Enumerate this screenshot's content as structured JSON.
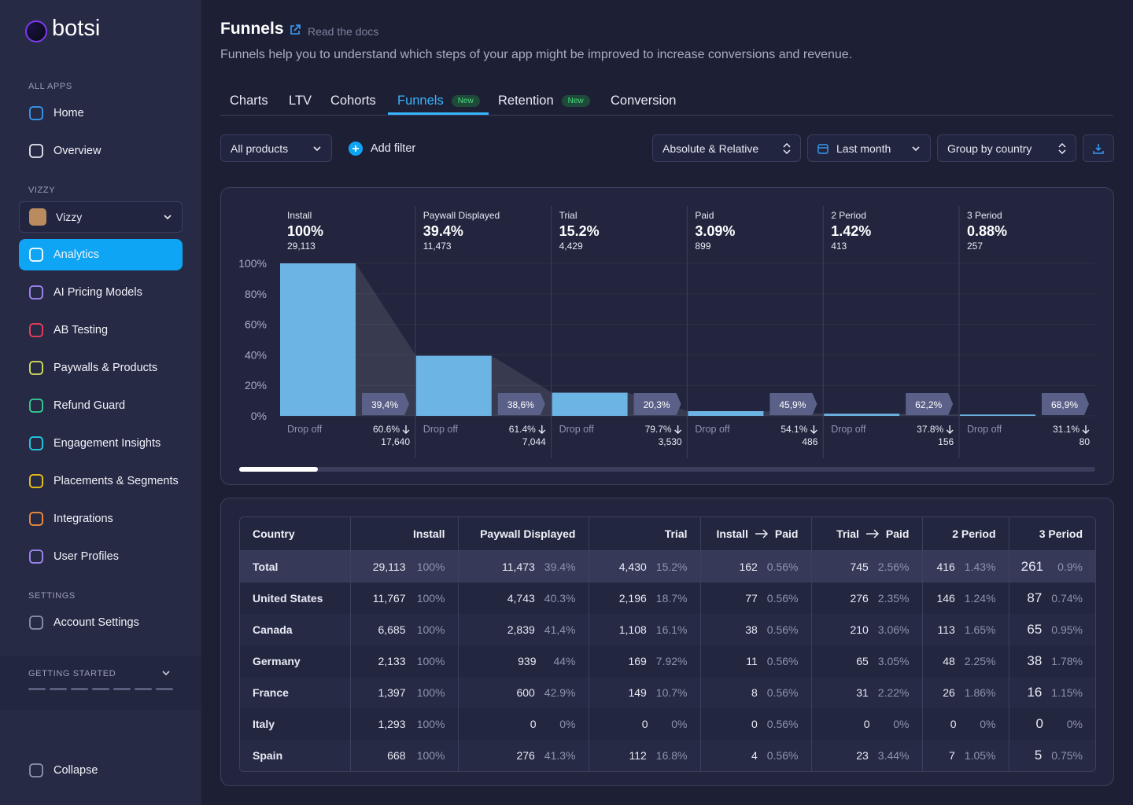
{
  "sidebar": {
    "brand": "botsi",
    "all_apps_label": "ALL APPS",
    "all_apps": [
      "Home",
      "Overview"
    ],
    "app_label": "VIZZY",
    "app_selector": "Vizzy",
    "app_items": [
      "Analytics",
      "AI Pricing Models",
      "AB Testing",
      "Paywalls & Products",
      "Refund Guard",
      "Engagement Insights",
      "Placements & Segments",
      "Integrations",
      "User Profiles"
    ],
    "settings_label": "SETTINGS",
    "settings": [
      "Account Settings"
    ],
    "getting_started": "GETTING STARTED",
    "collapse": "Collapse"
  },
  "header": {
    "title": "Funnels",
    "docs_link": "Read the docs",
    "description": "Funnels help you to understand which steps of your app might be improved to increase conversions and revenue."
  },
  "tabs": [
    {
      "label": "Charts"
    },
    {
      "label": "LTV"
    },
    {
      "label": "Cohorts"
    },
    {
      "label": "Funnels",
      "badge": "New"
    },
    {
      "label": "Retention",
      "badge": "New"
    },
    {
      "label": "Conversion"
    }
  ],
  "filters": {
    "products": "All products",
    "add_filter": "Add filter",
    "mode": "Absolute & Relative",
    "period": "Last month",
    "group": "Group by country"
  },
  "chart_data": {
    "type": "bar",
    "categories": [
      "Install",
      "Paywall Displayed",
      "Trial",
      "Paid",
      "2 Period",
      "3 Period"
    ],
    "values": [
      100,
      39.4,
      15.2,
      3.09,
      1.42,
      0.88
    ],
    "value_labels": [
      "100%",
      "39.4%",
      "15.2%",
      "3.09%",
      "1.42%",
      "0.88%"
    ],
    "counts": [
      "29,113",
      "11,473",
      "4,429",
      "899",
      "413",
      "257"
    ],
    "drop_badges": [
      "39,4%",
      "38,6%",
      "20,3%",
      "45,9%",
      "62,2%",
      "68,9%"
    ],
    "drop_off_label": "Drop off",
    "drop_percents": [
      "60.6%",
      "61.4%",
      "79.7%",
      "54.1%",
      "37.8%",
      "31.1%"
    ],
    "drop_counts": [
      "17,640",
      "7,044",
      "3,530",
      "486",
      "156",
      "80"
    ],
    "color": "#6cb4e4",
    "ylim": [
      0,
      100
    ],
    "yticks": [
      {
        "value": 0,
        "label": "0%"
      },
      {
        "value": 20,
        "label": "20%"
      },
      {
        "value": 40,
        "label": "40%"
      },
      {
        "value": 60,
        "label": "60%"
      },
      {
        "value": 80,
        "label": "80%"
      },
      {
        "value": 100,
        "label": "100%"
      }
    ],
    "grid": true
  },
  "table": {
    "columns": [
      "Country",
      "Install",
      "Paywall Displayed",
      "Trial",
      {
        "from": "Install",
        "to": "Paid"
      },
      {
        "from": "Trial",
        "to": "Paid"
      },
      "2 Period",
      "3 Period"
    ],
    "rows": [
      {
        "name": "Total",
        "cells": [
          [
            "29,113",
            "100%"
          ],
          [
            "11,473",
            "39.4%"
          ],
          [
            "4,430",
            "15.2%"
          ],
          [
            "162",
            "0.56%"
          ],
          [
            "745",
            "2.56%"
          ],
          [
            "416",
            "1.43%"
          ],
          [
            "261",
            "0.9%"
          ]
        ]
      },
      {
        "name": "United States",
        "cells": [
          [
            "11,767",
            "100%"
          ],
          [
            "4,743",
            "40.3%"
          ],
          [
            "2,196",
            "18.7%"
          ],
          [
            "77",
            "0.56%"
          ],
          [
            "276",
            "2.35%"
          ],
          [
            "146",
            "1.24%"
          ],
          [
            "87",
            "0.74%"
          ]
        ]
      },
      {
        "name": "Canada",
        "cells": [
          [
            "6,685",
            "100%"
          ],
          [
            "2,839",
            "41,4%"
          ],
          [
            "1,108",
            "16.1%"
          ],
          [
            "38",
            "0.56%"
          ],
          [
            "210",
            "3.06%"
          ],
          [
            "113",
            "1.65%"
          ],
          [
            "65",
            "0.95%"
          ]
        ]
      },
      {
        "name": "Germany",
        "cells": [
          [
            "2,133",
            "100%"
          ],
          [
            "939",
            "44%"
          ],
          [
            "169",
            "7.92%"
          ],
          [
            "11",
            "0.56%"
          ],
          [
            "65",
            "3.05%"
          ],
          [
            "48",
            "2.25%"
          ],
          [
            "38",
            "1.78%"
          ]
        ]
      },
      {
        "name": "France",
        "cells": [
          [
            "1,397",
            "100%"
          ],
          [
            "600",
            "42.9%"
          ],
          [
            "149",
            "10.7%"
          ],
          [
            "8",
            "0.56%"
          ],
          [
            "31",
            "2.22%"
          ],
          [
            "26",
            "1.86%"
          ],
          [
            "16",
            "1.15%"
          ]
        ]
      },
      {
        "name": "Italy",
        "cells": [
          [
            "1,293",
            "100%"
          ],
          [
            "0",
            "0%"
          ],
          [
            "0",
            "0%"
          ],
          [
            "0",
            "0.56%"
          ],
          [
            "0",
            "0%"
          ],
          [
            "0",
            "0%"
          ],
          [
            "0",
            "0%"
          ]
        ]
      },
      {
        "name": "Spain",
        "cells": [
          [
            "668",
            "100%"
          ],
          [
            "276",
            "41.3%"
          ],
          [
            "112",
            "16.8%"
          ],
          [
            "4",
            "0.56%"
          ],
          [
            "23",
            "3.44%"
          ],
          [
            "7",
            "1.05%"
          ],
          [
            "5",
            "0.75%"
          ]
        ]
      }
    ]
  }
}
